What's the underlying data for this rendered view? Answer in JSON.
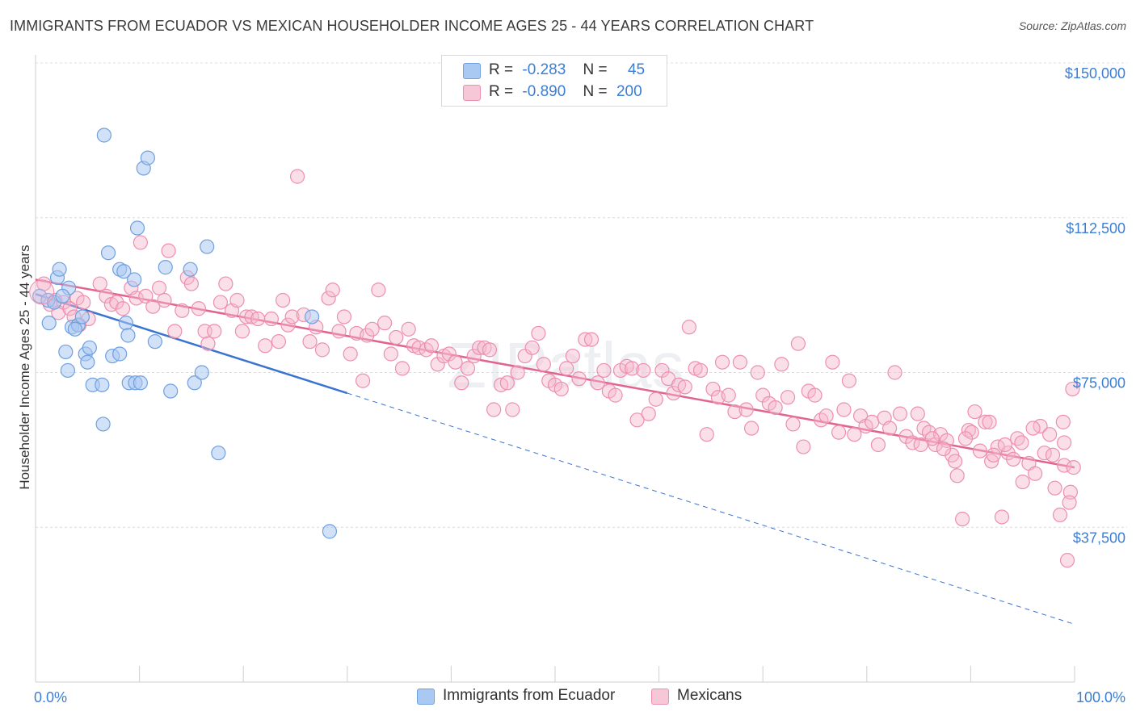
{
  "title": "IMMIGRANTS FROM ECUADOR VS MEXICAN HOUSEHOLDER INCOME AGES 25 - 44 YEARS CORRELATION CHART",
  "source": "Source: ZipAtlas.com",
  "watermark": "ZIPatlas",
  "colors": {
    "ecuador_fill": "#a9c9f2",
    "ecuador_stroke": "#6fa0e0",
    "ecuador_line": "#3a74d0",
    "mexican_fill": "#f6b8cd",
    "mexican_stroke": "#ec8fb0",
    "mexican_line": "#e0648f",
    "value_text": "#3b7ed6"
  },
  "legend": {
    "rows": [
      {
        "r_label": "R =",
        "r_value": "-0.283",
        "n_label": "N =",
        "n_value": "45"
      },
      {
        "r_label": "R =",
        "r_value": "-0.890",
        "n_label": "N =",
        "n_value": "200"
      }
    ]
  },
  "bottom_legend": [
    "Immigrants from Ecuador",
    "Mexicans"
  ],
  "chart_data": {
    "type": "scatter",
    "title": "IMMIGRANTS FROM ECUADOR VS MEXICAN HOUSEHOLDER INCOME AGES 25 - 44 YEARS CORRELATION CHART",
    "xlabel": "",
    "ylabel": "Householder Income Ages 25 - 44 years",
    "xlim": [
      0,
      100
    ],
    "ylim": [
      0,
      155000
    ],
    "x_tick_labels": [
      "0.0%",
      "100.0%"
    ],
    "y_ticks": [
      37500,
      75000,
      112500,
      150000
    ],
    "y_tick_labels": [
      "$37,500",
      "$75,000",
      "$112,500",
      "$150,000"
    ],
    "grid": true,
    "legend_position": "top-center",
    "series": [
      {
        "name": "Immigrants from Ecuador",
        "trend": {
          "x0": 0,
          "y0": 94000,
          "x1": 30,
          "y1": 70000,
          "dashed_to": {
            "x": 100,
            "y": 14000
          }
        },
        "points": [
          [
            0.4,
            93500
          ],
          [
            1.2,
            92500
          ],
          [
            1.8,
            92000
          ],
          [
            1.3,
            87000
          ],
          [
            2.1,
            98000
          ],
          [
            2.3,
            100000
          ],
          [
            3.2,
            95500
          ],
          [
            3.5,
            86000
          ],
          [
            4.1,
            86500
          ],
          [
            3.8,
            85500
          ],
          [
            2.9,
            80000
          ],
          [
            3.1,
            75500
          ],
          [
            4.8,
            79500
          ],
          [
            5.2,
            81000
          ],
          [
            5.0,
            77500
          ],
          [
            5.5,
            72000
          ],
          [
            6.4,
            72000
          ],
          [
            7.4,
            79000
          ],
          [
            8.1,
            79500
          ],
          [
            7.0,
            104000
          ],
          [
            6.5,
            62500
          ],
          [
            6.6,
            132500
          ],
          [
            8.1,
            100000
          ],
          [
            8.5,
            99500
          ],
          [
            8.7,
            87000
          ],
          [
            8.9,
            84000
          ],
          [
            9.0,
            72500
          ],
          [
            9.6,
            72500
          ],
          [
            10.1,
            72500
          ],
          [
            9.5,
            97500
          ],
          [
            9.8,
            110000
          ],
          [
            10.4,
            124500
          ],
          [
            10.8,
            127000
          ],
          [
            11.5,
            82500
          ],
          [
            12.5,
            100500
          ],
          [
            13.0,
            70500
          ],
          [
            14.9,
            100000
          ],
          [
            15.3,
            72500
          ],
          [
            16.0,
            75000
          ],
          [
            16.5,
            105500
          ],
          [
            17.6,
            55500
          ],
          [
            26.6,
            88500
          ],
          [
            28.3,
            36500
          ],
          [
            2.6,
            93500
          ],
          [
            4.5,
            88500
          ]
        ]
      },
      {
        "name": "Mexicans",
        "trend": {
          "x0": 0,
          "y0": 97500,
          "x1": 100,
          "y1": 52000
        },
        "points": [
          [
            0.8,
            96500
          ],
          [
            1.4,
            91500
          ],
          [
            1.9,
            92500
          ],
          [
            2.2,
            89500
          ],
          [
            2.7,
            92000
          ],
          [
            3.3,
            90500
          ],
          [
            3.7,
            88500
          ],
          [
            4.0,
            93000
          ],
          [
            4.2,
            86500
          ],
          [
            4.6,
            92000
          ],
          [
            5.1,
            88000
          ],
          [
            6.2,
            96500
          ],
          [
            6.8,
            93500
          ],
          [
            7.3,
            91500
          ],
          [
            7.8,
            92000
          ],
          [
            8.4,
            90500
          ],
          [
            9.2,
            95500
          ],
          [
            9.7,
            93000
          ],
          [
            10.1,
            106500
          ],
          [
            10.6,
            93500
          ],
          [
            11.3,
            91000
          ],
          [
            11.9,
            95500
          ],
          [
            12.4,
            92500
          ],
          [
            12.8,
            104500
          ],
          [
            13.4,
            85000
          ],
          [
            14.1,
            90000
          ],
          [
            14.6,
            98000
          ],
          [
            15.0,
            96500
          ],
          [
            15.7,
            90500
          ],
          [
            16.3,
            85000
          ],
          [
            16.6,
            82000
          ],
          [
            17.2,
            85000
          ],
          [
            17.8,
            92000
          ],
          [
            18.3,
            96500
          ],
          [
            18.9,
            90000
          ],
          [
            19.4,
            92500
          ],
          [
            19.9,
            85000
          ],
          [
            20.3,
            88500
          ],
          [
            20.8,
            88500
          ],
          [
            21.4,
            88000
          ],
          [
            22.1,
            81500
          ],
          [
            22.7,
            88000
          ],
          [
            23.4,
            82500
          ],
          [
            23.8,
            92500
          ],
          [
            24.3,
            86500
          ],
          [
            24.7,
            88500
          ],
          [
            25.2,
            122500
          ],
          [
            25.8,
            89000
          ],
          [
            26.4,
            82500
          ],
          [
            27.0,
            86000
          ],
          [
            27.6,
            80500
          ],
          [
            28.2,
            93000
          ],
          [
            28.6,
            95000
          ],
          [
            29.2,
            85000
          ],
          [
            29.7,
            88500
          ],
          [
            30.3,
            79500
          ],
          [
            30.9,
            84500
          ],
          [
            31.5,
            73000
          ],
          [
            31.9,
            84000
          ],
          [
            32.4,
            85500
          ],
          [
            33.0,
            95000
          ],
          [
            33.6,
            87000
          ],
          [
            34.2,
            79500
          ],
          [
            34.7,
            83500
          ],
          [
            35.3,
            76000
          ],
          [
            35.9,
            85500
          ],
          [
            36.4,
            81500
          ],
          [
            36.9,
            81000
          ],
          [
            37.6,
            80500
          ],
          [
            38.1,
            81500
          ],
          [
            38.7,
            77000
          ],
          [
            39.3,
            79000
          ],
          [
            39.8,
            79500
          ],
          [
            40.4,
            77500
          ],
          [
            41.0,
            72500
          ],
          [
            41.6,
            76000
          ],
          [
            42.2,
            79000
          ],
          [
            42.7,
            81000
          ],
          [
            43.2,
            81000
          ],
          [
            43.7,
            80500
          ],
          [
            44.1,
            66000
          ],
          [
            44.8,
            72000
          ],
          [
            45.4,
            72500
          ],
          [
            45.9,
            66000
          ],
          [
            46.4,
            75000
          ],
          [
            47.1,
            79000
          ],
          [
            47.8,
            81000
          ],
          [
            48.4,
            84500
          ],
          [
            48.9,
            77000
          ],
          [
            49.4,
            73000
          ],
          [
            50.0,
            72000
          ],
          [
            50.6,
            71000
          ],
          [
            51.1,
            76000
          ],
          [
            51.7,
            79000
          ],
          [
            52.3,
            73500
          ],
          [
            52.9,
            83000
          ],
          [
            53.5,
            83000
          ],
          [
            54.1,
            72500
          ],
          [
            54.7,
            75500
          ],
          [
            55.2,
            70500
          ],
          [
            55.8,
            69500
          ],
          [
            56.3,
            75500
          ],
          [
            56.9,
            76500
          ],
          [
            57.4,
            76000
          ],
          [
            57.9,
            63500
          ],
          [
            58.5,
            75500
          ],
          [
            59.0,
            65000
          ],
          [
            59.7,
            68500
          ],
          [
            60.3,
            75500
          ],
          [
            60.9,
            73500
          ],
          [
            61.4,
            70000
          ],
          [
            61.9,
            72000
          ],
          [
            62.5,
            71500
          ],
          [
            62.9,
            86000
          ],
          [
            63.5,
            76000
          ],
          [
            64.0,
            75500
          ],
          [
            64.6,
            60000
          ],
          [
            65.2,
            71000
          ],
          [
            65.7,
            69000
          ],
          [
            66.1,
            77500
          ],
          [
            66.7,
            69500
          ],
          [
            67.3,
            65500
          ],
          [
            67.8,
            77500
          ],
          [
            68.4,
            66000
          ],
          [
            68.9,
            61500
          ],
          [
            69.5,
            75000
          ],
          [
            70.0,
            69500
          ],
          [
            70.6,
            67500
          ],
          [
            71.2,
            66500
          ],
          [
            71.8,
            77000
          ],
          [
            72.4,
            69000
          ],
          [
            72.9,
            62500
          ],
          [
            73.4,
            82000
          ],
          [
            73.9,
            57000
          ],
          [
            74.4,
            70500
          ],
          [
            75.0,
            69500
          ],
          [
            75.6,
            63500
          ],
          [
            76.1,
            64500
          ],
          [
            76.7,
            77500
          ],
          [
            77.3,
            60500
          ],
          [
            77.8,
            66000
          ],
          [
            78.3,
            73000
          ],
          [
            78.8,
            60000
          ],
          [
            79.4,
            64500
          ],
          [
            79.9,
            62000
          ],
          [
            80.5,
            63000
          ],
          [
            81.1,
            57500
          ],
          [
            81.7,
            64000
          ],
          [
            82.2,
            61500
          ],
          [
            82.7,
            75000
          ],
          [
            83.2,
            65000
          ],
          [
            83.8,
            59500
          ],
          [
            84.4,
            58000
          ],
          [
            84.9,
            65000
          ],
          [
            85.5,
            61500
          ],
          [
            86.0,
            60500
          ],
          [
            86.6,
            57500
          ],
          [
            87.1,
            60000
          ],
          [
            87.7,
            58500
          ],
          [
            88.2,
            55000
          ],
          [
            88.7,
            50000
          ],
          [
            89.2,
            39500
          ],
          [
            89.8,
            61000
          ],
          [
            90.4,
            65500
          ],
          [
            90.9,
            56000
          ],
          [
            91.4,
            63000
          ],
          [
            92.0,
            53500
          ],
          [
            92.6,
            57000
          ],
          [
            93.0,
            40000
          ],
          [
            93.6,
            55500
          ],
          [
            94.1,
            54000
          ],
          [
            94.5,
            59000
          ],
          [
            95.0,
            48500
          ],
          [
            95.6,
            53000
          ],
          [
            96.2,
            50500
          ],
          [
            96.7,
            62000
          ],
          [
            97.1,
            55500
          ],
          [
            97.6,
            60000
          ],
          [
            98.1,
            47000
          ],
          [
            98.6,
            40500
          ],
          [
            99.0,
            52500
          ],
          [
            99.3,
            29500
          ],
          [
            99.6,
            46000
          ],
          [
            99.8,
            71000
          ],
          [
            98.9,
            63000
          ],
          [
            99.5,
            43500
          ],
          [
            99.9,
            52000
          ],
          [
            99.0,
            58000
          ],
          [
            97.9,
            55000
          ],
          [
            96.0,
            61500
          ],
          [
            94.9,
            58000
          ],
          [
            93.3,
            57500
          ],
          [
            92.2,
            55000
          ],
          [
            91.8,
            63000
          ],
          [
            90.1,
            60500
          ],
          [
            89.5,
            59000
          ],
          [
            88.5,
            53500
          ],
          [
            87.4,
            56500
          ],
          [
            86.3,
            59000
          ],
          [
            85.2,
            57500
          ]
        ]
      }
    ]
  }
}
